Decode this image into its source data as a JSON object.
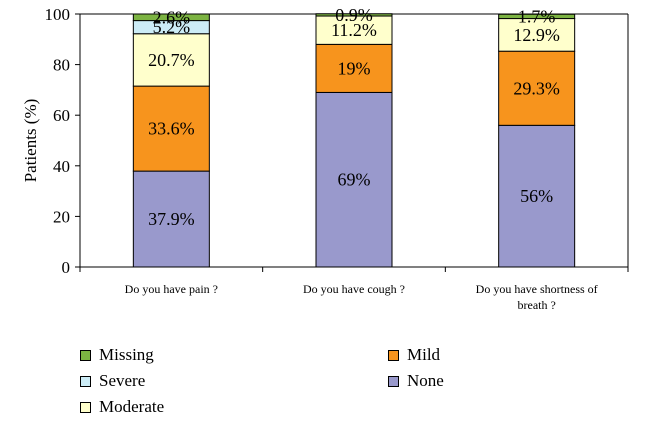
{
  "chart_data": {
    "type": "bar",
    "stacked": true,
    "ylabel": "Patients (%)",
    "xlabel": "",
    "ylim": [
      0,
      100
    ],
    "yticks": [
      "0",
      "20",
      "40",
      "60",
      "80",
      "100"
    ],
    "categories": [
      [
        "Do you have pain ?"
      ],
      [
        "Do you have cough ?"
      ],
      [
        "Do you have shortness of",
        "breath ?"
      ]
    ],
    "series": [
      {
        "name": "None",
        "color": "#9999cc",
        "values": [
          37.9,
          69,
          56
        ],
        "labels": [
          "37.9%",
          "69%",
          "56%"
        ]
      },
      {
        "name": "Mild",
        "color": "#f7941d",
        "values": [
          33.6,
          19,
          29.3
        ],
        "labels": [
          "33.6%",
          "19%",
          "29.3%"
        ]
      },
      {
        "name": "Moderate",
        "color": "#ffffcc",
        "values": [
          20.7,
          11.2,
          12.9
        ],
        "labels": [
          "20.7%",
          "11.2%",
          "12.9%"
        ]
      },
      {
        "name": "Severe",
        "color": "#ccecf6",
        "values": [
          5.2,
          0,
          0
        ],
        "labels": [
          "5.2%",
          "",
          ""
        ]
      },
      {
        "name": "Missing",
        "color": "#7cb342",
        "values": [
          2.6,
          0.9,
          1.7
        ],
        "labels": [
          "2.6%",
          "0.9%",
          "1.7%"
        ]
      }
    ],
    "legend": {
      "placement": "bottom",
      "items": [
        {
          "name": "Missing",
          "color": "#7cb342"
        },
        {
          "name": "Severe",
          "color": "#ccecf6"
        },
        {
          "name": "Moderate",
          "color": "#ffffcc"
        },
        {
          "name": "Mild",
          "color": "#f7941d"
        },
        {
          "name": "None",
          "color": "#9999cc"
        }
      ]
    },
    "grid": false
  }
}
